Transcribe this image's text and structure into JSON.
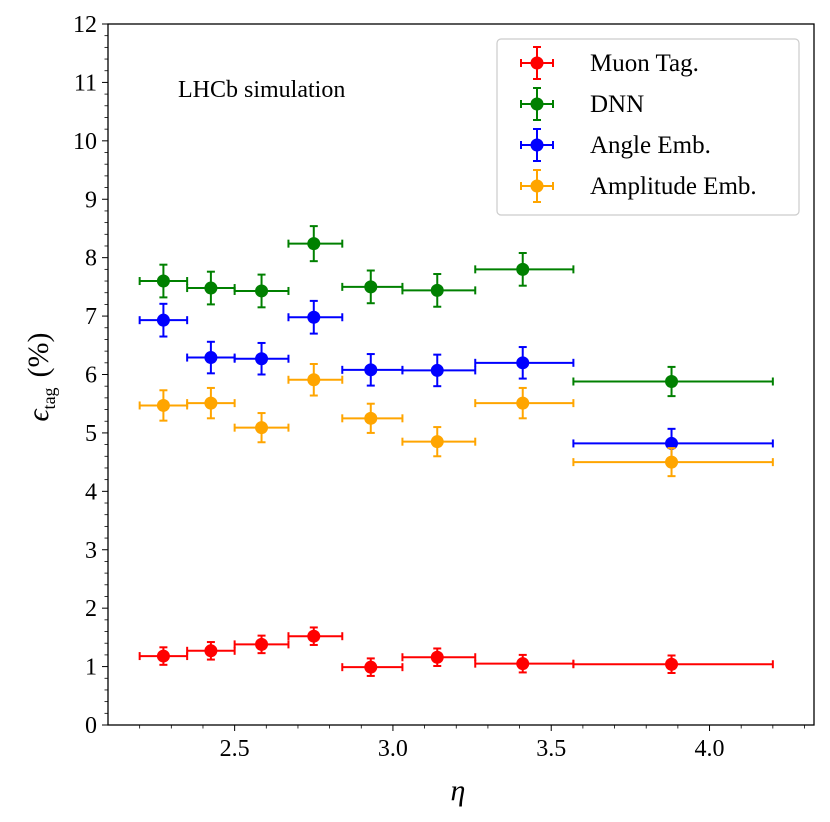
{
  "chart_data": {
    "type": "scatter",
    "annotation": "LHCb simulation",
    "xlabel": "η",
    "ylabel_main": "ϵ",
    "ylabel_sub": "tag",
    "ylabel_unit": "(%)",
    "xlim": [
      2.1,
      4.33
    ],
    "ylim": [
      0,
      12
    ],
    "x_ticks": [
      2.5,
      3.0,
      3.5,
      4.0
    ],
    "x_tick_labels": [
      "2.5",
      "3.0",
      "3.5",
      "4.0"
    ],
    "y_ticks": [
      0,
      1,
      2,
      3,
      4,
      5,
      6,
      7,
      8,
      9,
      10,
      11,
      12
    ],
    "y_tick_labels": [
      "0",
      "1",
      "2",
      "3",
      "4",
      "5",
      "6",
      "7",
      "8",
      "9",
      "10",
      "11",
      "12"
    ],
    "legend_position": "top-right",
    "series": [
      {
        "name": "Muon Tag.",
        "color": "#ff0000",
        "points": [
          {
            "x": 2.275,
            "xlo": 2.2,
            "xhi": 2.35,
            "y": 1.18,
            "yerr": 0.15
          },
          {
            "x": 2.425,
            "xlo": 2.35,
            "xhi": 2.5,
            "y": 1.27,
            "yerr": 0.15
          },
          {
            "x": 2.585,
            "xlo": 2.5,
            "xhi": 2.67,
            "y": 1.38,
            "yerr": 0.15
          },
          {
            "x": 2.75,
            "xlo": 2.67,
            "xhi": 2.84,
            "y": 1.52,
            "yerr": 0.15
          },
          {
            "x": 2.93,
            "xlo": 2.84,
            "xhi": 3.03,
            "y": 0.99,
            "yerr": 0.15
          },
          {
            "x": 3.14,
            "xlo": 3.03,
            "xhi": 3.26,
            "y": 1.16,
            "yerr": 0.15
          },
          {
            "x": 3.41,
            "xlo": 3.26,
            "xhi": 3.57,
            "y": 1.05,
            "yerr": 0.15
          },
          {
            "x": 3.88,
            "xlo": 3.57,
            "xhi": 4.2,
            "y": 1.04,
            "yerr": 0.15
          }
        ]
      },
      {
        "name": "DNN",
        "color": "#008000",
        "points": [
          {
            "x": 2.275,
            "xlo": 2.2,
            "xhi": 2.35,
            "y": 7.6,
            "yerr": 0.28
          },
          {
            "x": 2.425,
            "xlo": 2.35,
            "xhi": 2.5,
            "y": 7.48,
            "yerr": 0.28
          },
          {
            "x": 2.585,
            "xlo": 2.5,
            "xhi": 2.67,
            "y": 7.43,
            "yerr": 0.28
          },
          {
            "x": 2.75,
            "xlo": 2.67,
            "xhi": 2.84,
            "y": 8.24,
            "yerr": 0.3
          },
          {
            "x": 2.93,
            "xlo": 2.84,
            "xhi": 3.03,
            "y": 7.5,
            "yerr": 0.28
          },
          {
            "x": 3.14,
            "xlo": 3.03,
            "xhi": 3.26,
            "y": 7.44,
            "yerr": 0.28
          },
          {
            "x": 3.41,
            "xlo": 3.26,
            "xhi": 3.57,
            "y": 7.8,
            "yerr": 0.28
          },
          {
            "x": 3.88,
            "xlo": 3.57,
            "xhi": 4.2,
            "y": 5.88,
            "yerr": 0.25
          }
        ]
      },
      {
        "name": "Angle Emb.",
        "color": "#0000ff",
        "points": [
          {
            "x": 2.275,
            "xlo": 2.2,
            "xhi": 2.35,
            "y": 6.93,
            "yerr": 0.28
          },
          {
            "x": 2.425,
            "xlo": 2.35,
            "xhi": 2.5,
            "y": 6.29,
            "yerr": 0.27
          },
          {
            "x": 2.585,
            "xlo": 2.5,
            "xhi": 2.67,
            "y": 6.27,
            "yerr": 0.27
          },
          {
            "x": 2.75,
            "xlo": 2.67,
            "xhi": 2.84,
            "y": 6.98,
            "yerr": 0.28
          },
          {
            "x": 2.93,
            "xlo": 2.84,
            "xhi": 3.03,
            "y": 6.08,
            "yerr": 0.27
          },
          {
            "x": 3.14,
            "xlo": 3.03,
            "xhi": 3.26,
            "y": 6.07,
            "yerr": 0.27
          },
          {
            "x": 3.41,
            "xlo": 3.26,
            "xhi": 3.57,
            "y": 6.2,
            "yerr": 0.27
          },
          {
            "x": 3.88,
            "xlo": 3.57,
            "xhi": 4.2,
            "y": 4.82,
            "yerr": 0.25
          }
        ]
      },
      {
        "name": "Amplitude Emb.",
        "color": "#ffa500",
        "points": [
          {
            "x": 2.275,
            "xlo": 2.2,
            "xhi": 2.35,
            "y": 5.47,
            "yerr": 0.26
          },
          {
            "x": 2.425,
            "xlo": 2.35,
            "xhi": 2.5,
            "y": 5.51,
            "yerr": 0.26
          },
          {
            "x": 2.585,
            "xlo": 2.5,
            "xhi": 2.67,
            "y": 5.09,
            "yerr": 0.25
          },
          {
            "x": 2.75,
            "xlo": 2.67,
            "xhi": 2.84,
            "y": 5.91,
            "yerr": 0.27
          },
          {
            "x": 2.93,
            "xlo": 2.84,
            "xhi": 3.03,
            "y": 5.25,
            "yerr": 0.25
          },
          {
            "x": 3.14,
            "xlo": 3.03,
            "xhi": 3.26,
            "y": 4.85,
            "yerr": 0.25
          },
          {
            "x": 3.41,
            "xlo": 3.26,
            "xhi": 3.57,
            "y": 5.51,
            "yerr": 0.26
          },
          {
            "x": 3.88,
            "xlo": 3.57,
            "xhi": 4.2,
            "y": 4.5,
            "yerr": 0.24
          }
        ]
      }
    ]
  }
}
